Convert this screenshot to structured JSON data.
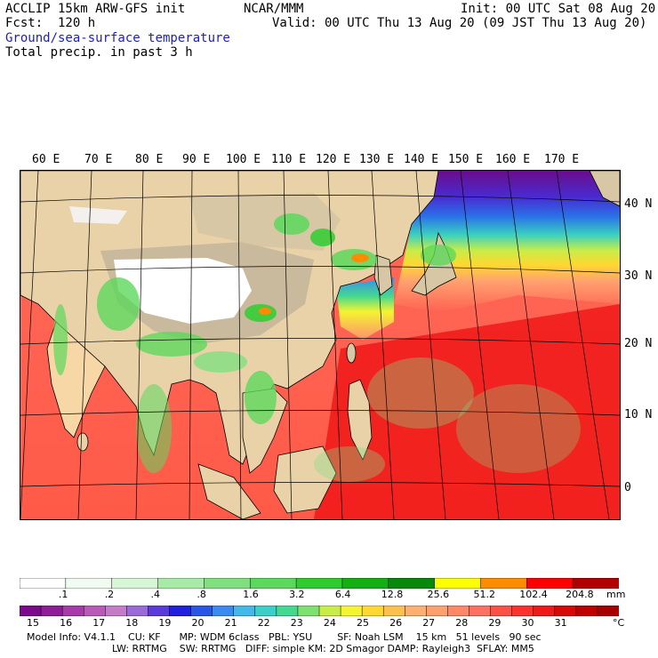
{
  "header": {
    "line1_left": "ACCLIP 15km ARW-GFS init",
    "line1_mid": "NCAR/MMM",
    "line1_right": "Init: 00 UTC Sat 08 Aug 20",
    "line2_left": "Fcst:  120 h",
    "line2_right": "Valid: 00 UTC Thu 13 Aug 20 (09 JST Thu 13 Aug 20)",
    "field1": "Ground/sea-surface temperature",
    "field2": "Total precip. in past 3 h"
  },
  "map": {
    "lon_labels": [
      "60 E",
      "70 E",
      "80 E",
      "90 E",
      "100 E",
      "110 E",
      "120 E",
      "130 E",
      "140 E",
      "150 E",
      "160 E",
      "170 E"
    ],
    "lat_labels": [
      "40 N",
      "30 N",
      "20 N",
      "10 N",
      "0"
    ]
  },
  "precip_scale": {
    "labels": [
      ".1",
      ".2",
      ".4",
      ".8",
      "1.6",
      "3.2",
      "6.4",
      "12.8",
      "25.6",
      "51.2",
      "102.4",
      "204.8"
    ],
    "unit": "mm",
    "colors": [
      "#ffffff",
      "#f2fbf2",
      "#d7f5d7",
      "#a8eaa8",
      "#80e080",
      "#5cd85c",
      "#2fcc2f",
      "#12b012",
      "#088808",
      "#ffff00",
      "#ff8c00",
      "#ff0000",
      "#b00000"
    ]
  },
  "sst_scale": {
    "labels": [
      "15",
      "16",
      "17",
      "18",
      "19",
      "20",
      "21",
      "22",
      "23",
      "24",
      "25",
      "26",
      "27",
      "28",
      "29",
      "30",
      "31"
    ],
    "unit": "°C",
    "colors": [
      "#7a0a8a",
      "#8f1d98",
      "#a63aa8",
      "#b85ab8",
      "#c47cc8",
      "#9a6ad8",
      "#5a3ad8",
      "#2020e0",
      "#2a56e8",
      "#3a8af0",
      "#44b8e8",
      "#3ad0c8",
      "#44d890",
      "#7de070",
      "#c8ec48",
      "#f4f430",
      "#ffd830",
      "#ffc050",
      "#ffb070",
      "#ffa070",
      "#ff8868",
      "#ff7060",
      "#ff5048",
      "#ff3030",
      "#f01818",
      "#d80808",
      "#c00000",
      "#a80000"
    ]
  },
  "info": {
    "line1": "Model Info: V4.1.1    CU: KF      MP: WDM 6class   PBL: YSU        SF: Noah LSM    15 km   51 levels   90 sec",
    "line2": "LW: RRTMG    SW: RRTMG   DIFF: simple KM: 2D Smagor DAMP: Rayleigh3  SFLAY: MM5"
  }
}
